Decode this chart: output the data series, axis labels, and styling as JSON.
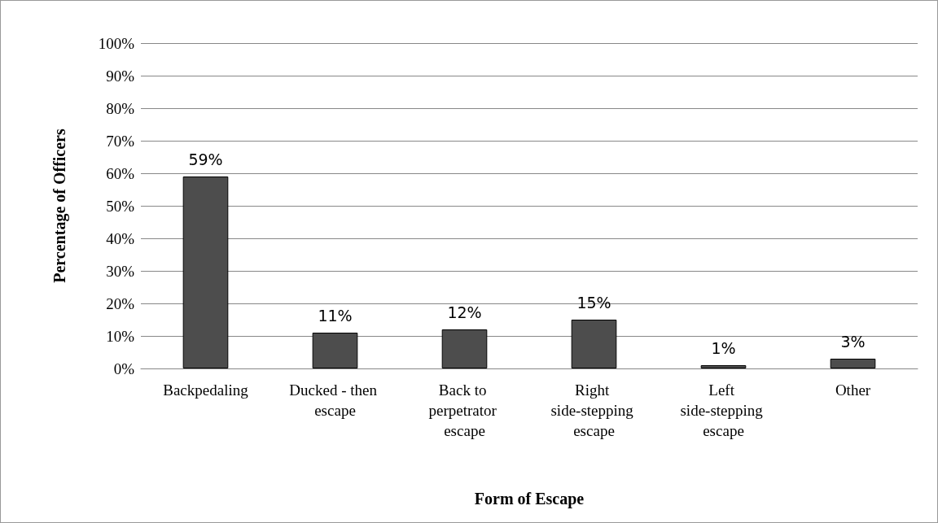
{
  "chart_data": {
    "type": "bar",
    "xlabel": "Form of Escape",
    "ylabel": "Percentage of Officers",
    "categories": [
      "Backpedaling",
      "Ducked - then escape",
      "Back to perpetrator escape",
      "Right side-stepping escape",
      "Left side-stepping escape",
      "Other"
    ],
    "values": [
      59,
      11,
      12,
      15,
      1,
      3
    ],
    "value_labels": [
      "59%",
      "11%",
      "12%",
      "15%",
      "1%",
      "3%"
    ],
    "color": "#4d4d4d",
    "ylim": [
      0,
      100
    ],
    "yticks": [
      {
        "value": 0,
        "label": "0%"
      },
      {
        "value": 10,
        "label": "10%"
      },
      {
        "value": 20,
        "label": "20%"
      },
      {
        "value": 30,
        "label": "30%"
      },
      {
        "value": 40,
        "label": "40%"
      },
      {
        "value": 50,
        "label": "50%"
      },
      {
        "value": 60,
        "label": "60%"
      },
      {
        "value": 70,
        "label": "70%"
      },
      {
        "value": 80,
        "label": "80%"
      },
      {
        "value": 90,
        "label": "90%"
      },
      {
        "value": 100,
        "label": "100%"
      }
    ],
    "grid": "y"
  }
}
